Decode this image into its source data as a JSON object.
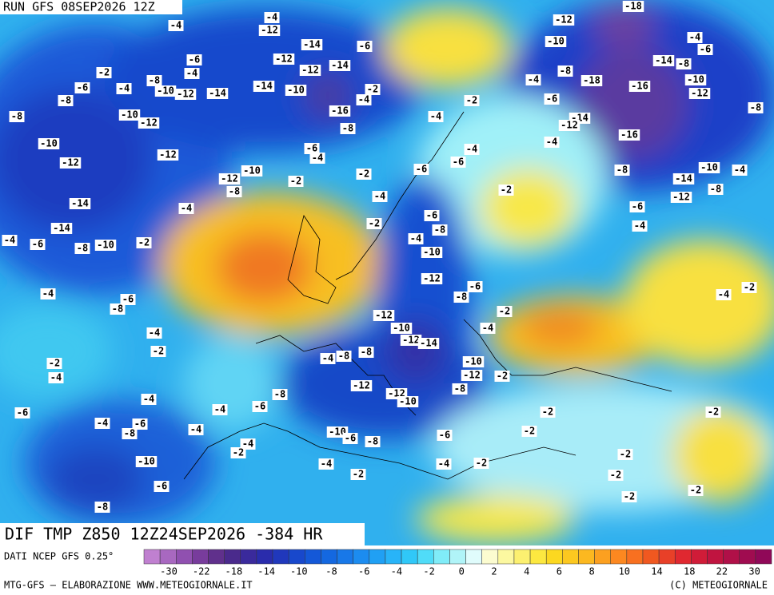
{
  "header": {
    "run": "RUN GFS 08SEP2026 12Z"
  },
  "title": "DIF TMP Z850 12Z24SEP2026 -384 HR",
  "source": "DATI NCEP GFS 0.25°",
  "footer_left": "MTG-GFS — ELABORAZIONE WWW.METEOGIORNALE.IT",
  "footer_right": "(C) METEOGIORNALE",
  "colorbar": {
    "labels": [
      -30,
      -22,
      -18,
      -14,
      -10,
      -8,
      -6,
      -4,
      -2,
      0,
      2,
      4,
      6,
      8,
      10,
      14,
      18,
      22,
      30
    ],
    "colors": [
      "#c080d0",
      "#a868c0",
      "#9050b0",
      "#783c9c",
      "#60308c",
      "#4a2a8c",
      "#3a2a9c",
      "#2a2cac",
      "#2038bc",
      "#1848cc",
      "#1458d8",
      "#1468e0",
      "#1878e8",
      "#1c8cf0",
      "#20a0f4",
      "#28b4f8",
      "#30c8f8",
      "#50dcf8",
      "#80ecf8",
      "#b0f4f8",
      "#e0fcfc",
      "#fcfcd0",
      "#fcf8a0",
      "#fcf070",
      "#fce840",
      "#fcd820",
      "#fcc820",
      "#fcb820",
      "#fca020",
      "#fc8820",
      "#f87020",
      "#f05820",
      "#e84028",
      "#e02830",
      "#d01c38",
      "#c01440",
      "#b01048",
      "#a00c50",
      "#900858"
    ]
  },
  "map": {
    "contour_labels": [
      -4,
      -12,
      -4,
      -14,
      -6,
      -12,
      -14,
      -12,
      -6,
      -4,
      -2,
      -4,
      -8,
      -10,
      -12,
      -14,
      -14,
      -10,
      -6,
      -8,
      -16,
      -2,
      -4,
      -8,
      -10,
      -12,
      -8,
      -10,
      -12,
      -12,
      -6,
      -4,
      -12,
      -10,
      -8,
      -2,
      -2,
      -4,
      -6,
      -6,
      -4,
      -4,
      -2,
      -14,
      -14,
      -4,
      -4,
      -6,
      -8,
      -10,
      -2,
      -2,
      -6,
      -8,
      -4,
      -10,
      -12,
      -6,
      -8,
      -4,
      -6,
      -8,
      -4,
      -2,
      -12,
      -10,
      -12,
      -14,
      -8,
      -4,
      -8,
      -10,
      -12,
      -2,
      -2,
      -4,
      -8,
      -2,
      -4,
      -12,
      -12,
      -10,
      -8,
      -6,
      -4,
      -4,
      -6,
      -4,
      -6,
      -8,
      -4,
      -10,
      -6,
      -8,
      -6,
      -4,
      -2,
      -10,
      -6,
      -8,
      -4,
      -4,
      -2,
      -2,
      -2,
      -2,
      -2,
      -2,
      -2,
      -2,
      -2,
      -12,
      -18,
      -10,
      -4,
      -6,
      -14,
      -8,
      -10,
      -16,
      -12,
      -18,
      -8,
      -4,
      -6,
      -14,
      -12,
      -16,
      -4,
      -8,
      -10,
      -4,
      -14,
      -12,
      -8,
      -8,
      -6,
      -4,
      -2,
      -4,
      -2
    ]
  }
}
